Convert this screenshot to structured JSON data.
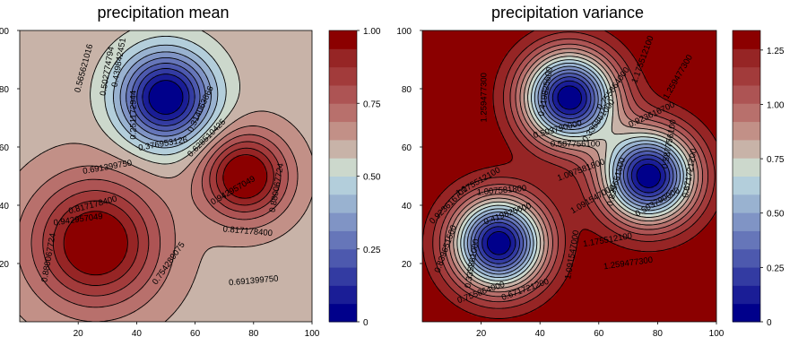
{
  "figure": {
    "panels": [
      {
        "title": "precipitation mean"
      },
      {
        "title": "precipitation variance"
      }
    ]
  },
  "chart_data": [
    {
      "type": "heatmap",
      "title": "precipitation mean",
      "xlabel": "",
      "ylabel": "",
      "xlim": [
        0,
        100
      ],
      "ylim": [
        0,
        100
      ],
      "xticks": [
        "20",
        "40",
        "60",
        "80",
        "100"
      ],
      "yticks": [
        "20",
        "40",
        "60",
        "80",
        "100"
      ],
      "grid": false,
      "colorbar": {
        "range": [
          0,
          1
        ],
        "ticks": [
          "0",
          "0.25",
          "0.50",
          "0.75",
          "1.00"
        ],
        "levels": 16,
        "colors": [
          "#00008b",
          "#1a1d96",
          "#333ba2",
          "#4d59ae",
          "#6676b9",
          "#8094c5",
          "#99b2d0",
          "#b3cedb",
          "#ccd8cc",
          "#c8b3a8",
          "#c29087",
          "#b8706c",
          "#ad5454",
          "#a23b3b",
          "#962525",
          "#8b0000"
        ]
      },
      "field": {
        "base": 0.6,
        "bumps": [
          {
            "x": 50,
            "y": 77,
            "amplitude": -0.62,
            "sigma": 11
          },
          {
            "x": 77,
            "y": 50,
            "amplitude": 0.45,
            "sigma": 10
          },
          {
            "x": 26,
            "y": 27,
            "amplitude": 0.44,
            "sigma": 15
          }
        ]
      },
      "contour_labels": [
        {
          "text": "0.565621016",
          "x": 22,
          "y": 87,
          "rotation": -75
        },
        {
          "text": "0.502774794",
          "x": 30,
          "y": 86,
          "rotation": -80
        },
        {
          "text": "0.439842451",
          "x": 34,
          "y": 89,
          "rotation": -80
        },
        {
          "text": "0.251172944",
          "x": 39,
          "y": 71,
          "rotation": -90
        },
        {
          "text": "0.314063866",
          "x": 62,
          "y": 73,
          "rotation": -65
        },
        {
          "text": "0.376953126",
          "x": 49,
          "y": 61,
          "rotation": -10
        },
        {
          "text": "0.628510425",
          "x": 64,
          "y": 63,
          "rotation": -45
        },
        {
          "text": "0.691399750",
          "x": 30,
          "y": 53,
          "rotation": -10
        },
        {
          "text": "0.817178400",
          "x": 25,
          "y": 40,
          "rotation": -15
        },
        {
          "text": "0.942957049",
          "x": 20,
          "y": 35,
          "rotation": -8
        },
        {
          "text": "0.880067724",
          "x": 10,
          "y": 22,
          "rotation": -80
        },
        {
          "text": "0.754289075",
          "x": 51,
          "y": 20,
          "rotation": -55
        },
        {
          "text": "0.691399750",
          "x": 80,
          "y": 14,
          "rotation": -5
        },
        {
          "text": "0.942957049",
          "x": 73,
          "y": 45,
          "rotation": -30
        },
        {
          "text": "0.880067724",
          "x": 88,
          "y": 46,
          "rotation": -80
        },
        {
          "text": "0.817178400",
          "x": 78,
          "y": 31,
          "rotation": 5
        }
      ]
    },
    {
      "type": "heatmap",
      "title": "precipitation variance",
      "xlabel": "",
      "ylabel": "",
      "xlim": [
        0,
        100
      ],
      "ylim": [
        0,
        100
      ],
      "xticks": [
        "20",
        "40",
        "60",
        "80",
        "100"
      ],
      "yticks": [
        "20",
        "40",
        "60",
        "80",
        "100"
      ],
      "grid": false,
      "colorbar": {
        "range": [
          0,
          1.34
        ],
        "ticks": [
          "0",
          "0.25",
          "0.50",
          "0.75",
          "1.00",
          "1.25"
        ],
        "levels": 16,
        "colors": [
          "#00008b",
          "#1a1d96",
          "#333ba2",
          "#4d59ae",
          "#6676b9",
          "#8094c5",
          "#99b2d0",
          "#b3cedb",
          "#ccd8cc",
          "#c8b3a8",
          "#c29087",
          "#b8706c",
          "#ad5454",
          "#a23b3b",
          "#962525",
          "#8b0000"
        ]
      },
      "field": {
        "base": 1.34,
        "bumps": [
          {
            "x": 50,
            "y": 77,
            "amplitude": -1.34,
            "sigma": 11
          },
          {
            "x": 77,
            "y": 50,
            "amplitude": -1.34,
            "sigma": 11
          },
          {
            "x": 26,
            "y": 27,
            "amplitude": -1.34,
            "sigma": 11
          }
        ]
      },
      "contour_labels": [
        {
          "text": "1.259477300",
          "x": 21,
          "y": 77,
          "rotation": -90
        },
        {
          "text": "1.175512100",
          "x": 75,
          "y": 90,
          "rotation": -70
        },
        {
          "text": "1.259477300",
          "x": 87,
          "y": 84,
          "rotation": -60
        },
        {
          "text": "0.419825600",
          "x": 42,
          "y": 79,
          "rotation": -80
        },
        {
          "text": "0.755864000",
          "x": 65,
          "y": 80,
          "rotation": -55
        },
        {
          "text": "0.923616700",
          "x": 78,
          "y": 71,
          "rotation": -25
        },
        {
          "text": "0.335861000",
          "x": 60,
          "y": 69,
          "rotation": -55
        },
        {
          "text": "0.503790000",
          "x": 46,
          "y": 66,
          "rotation": -15
        },
        {
          "text": "0.587756100",
          "x": 52,
          "y": 61,
          "rotation": 0
        },
        {
          "text": "1.007581800",
          "x": 54,
          "y": 52,
          "rotation": -20
        },
        {
          "text": "0.839651500",
          "x": 66,
          "y": 48,
          "rotation": -75
        },
        {
          "text": "1.091547000",
          "x": 58,
          "y": 42,
          "rotation": -30
        },
        {
          "text": "0.587756100",
          "x": 84,
          "y": 61,
          "rotation": -80
        },
        {
          "text": "0.671721200",
          "x": 91,
          "y": 51,
          "rotation": -80
        },
        {
          "text": "0.503790000",
          "x": 80,
          "y": 41,
          "rotation": -30
        },
        {
          "text": "1.175512100",
          "x": 19,
          "y": 48,
          "rotation": -30
        },
        {
          "text": "1.007581800",
          "x": 27,
          "y": 45,
          "rotation": -5
        },
        {
          "text": "0.923616700",
          "x": 9,
          "y": 40,
          "rotation": -45
        },
        {
          "text": "0.419825600",
          "x": 29,
          "y": 37,
          "rotation": -20
        },
        {
          "text": "0.839651500",
          "x": 8,
          "y": 25,
          "rotation": -70
        },
        {
          "text": "0.335861000",
          "x": 17,
          "y": 20,
          "rotation": -80
        },
        {
          "text": "0.755864000",
          "x": 20,
          "y": 10,
          "rotation": -20
        },
        {
          "text": "0.671721200",
          "x": 35,
          "y": 11,
          "rotation": -20
        },
        {
          "text": "1.091547000",
          "x": 51,
          "y": 23,
          "rotation": -80
        },
        {
          "text": "1.175512100",
          "x": 63,
          "y": 28,
          "rotation": -10
        },
        {
          "text": "1.259477300",
          "x": 70,
          "y": 20,
          "rotation": -8
        }
      ]
    }
  ]
}
